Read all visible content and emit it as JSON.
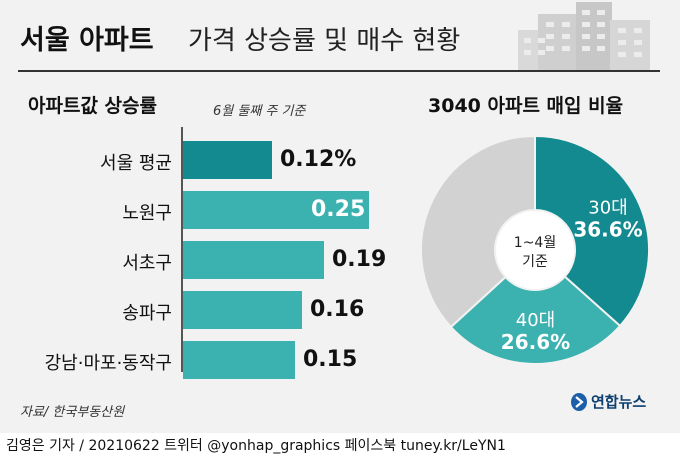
{
  "header": {
    "title_main": "서울 아파트",
    "title_sub": "가격 상승률 및 매수 현황"
  },
  "bar_panel": {
    "title": "아파트값 상승률",
    "note": "6월 둘째 주 기준"
  },
  "pie_panel": {
    "title": "3040 아파트 매입 비율",
    "center_line1": "1~4월",
    "center_line2": "기준"
  },
  "source": "자료/ 한국부동산원",
  "logo": {
    "text": "연합뉴스",
    "icon": "yonhap-logo-icon"
  },
  "footer": {
    "text": "김영은 기자 / 20210622  트위터 @yonhap_graphics  페이스북 tuney.kr/LeYN1"
  },
  "colors": {
    "dark_teal": "#138a8f",
    "light_teal": "#3bb1b0",
    "gray": "#d2d2d2",
    "background": "#f2f2f2"
  },
  "chart_data": [
    {
      "type": "bar",
      "orientation": "horizontal",
      "title": "아파트값 상승률",
      "categories": [
        "서울 평균",
        "노원구",
        "서초구",
        "송파구",
        "강남·마포·동작구"
      ],
      "values": [
        0.12,
        0.25,
        0.19,
        0.16,
        0.15
      ],
      "value_labels": [
        "0.12%",
        "0.25",
        "0.19",
        "0.16",
        "0.15"
      ],
      "unit": "%",
      "bar_colors": [
        "#138a8f",
        "#3bb1b0",
        "#3bb1b0",
        "#3bb1b0",
        "#3bb1b0"
      ],
      "xlim": [
        0,
        0.25
      ]
    },
    {
      "type": "pie",
      "title": "3040 아파트 매입 비율",
      "slices": [
        {
          "category": "30대",
          "value": 36.6,
          "label": "36.6%",
          "color": "#138a8f"
        },
        {
          "category": "40대",
          "value": 26.6,
          "label": "26.6%",
          "color": "#3bb1b0"
        },
        {
          "category": "",
          "value": 36.8,
          "label": "",
          "color": "#d2d2d2"
        }
      ],
      "start": "12 o'clock",
      "direction": "clockwise",
      "donut": true
    }
  ]
}
